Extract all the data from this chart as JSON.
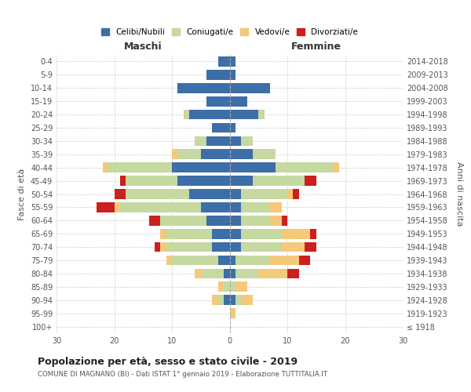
{
  "age_groups": [
    "100+",
    "95-99",
    "90-94",
    "85-89",
    "80-84",
    "75-79",
    "70-74",
    "65-69",
    "60-64",
    "55-59",
    "50-54",
    "45-49",
    "40-44",
    "35-39",
    "30-34",
    "25-29",
    "20-24",
    "15-19",
    "10-14",
    "5-9",
    "0-4"
  ],
  "birth_years": [
    "≤ 1918",
    "1919-1923",
    "1924-1928",
    "1929-1933",
    "1934-1938",
    "1939-1943",
    "1944-1948",
    "1949-1953",
    "1954-1958",
    "1959-1963",
    "1964-1968",
    "1969-1973",
    "1974-1978",
    "1979-1983",
    "1984-1988",
    "1989-1993",
    "1994-1998",
    "1999-2003",
    "2004-2008",
    "2009-2013",
    "2014-2018"
  ],
  "male": {
    "celibi": [
      0,
      0,
      1,
      0,
      1,
      2,
      3,
      3,
      4,
      5,
      7,
      9,
      10,
      5,
      4,
      3,
      7,
      4,
      9,
      4,
      2
    ],
    "coniugati": [
      0,
      0,
      1,
      1,
      4,
      8,
      8,
      8,
      8,
      14,
      11,
      9,
      11,
      4,
      2,
      0,
      1,
      0,
      0,
      0,
      0
    ],
    "vedovi": [
      0,
      0,
      1,
      1,
      1,
      1,
      1,
      1,
      0,
      1,
      0,
      0,
      1,
      1,
      0,
      0,
      0,
      0,
      0,
      0,
      0
    ],
    "divorziati": [
      0,
      0,
      0,
      0,
      0,
      0,
      1,
      0,
      2,
      3,
      2,
      1,
      0,
      0,
      0,
      0,
      0,
      0,
      0,
      0,
      0
    ]
  },
  "female": {
    "nubili": [
      0,
      0,
      1,
      0,
      1,
      1,
      2,
      2,
      2,
      2,
      2,
      4,
      8,
      4,
      2,
      1,
      5,
      3,
      7,
      1,
      1
    ],
    "coniugate": [
      0,
      0,
      1,
      1,
      4,
      6,
      7,
      7,
      5,
      5,
      8,
      9,
      10,
      4,
      2,
      0,
      1,
      0,
      0,
      0,
      0
    ],
    "vedove": [
      0,
      1,
      2,
      2,
      5,
      5,
      4,
      5,
      2,
      2,
      1,
      0,
      1,
      0,
      0,
      0,
      0,
      0,
      0,
      0,
      0
    ],
    "divorziate": [
      0,
      0,
      0,
      0,
      2,
      2,
      2,
      1,
      1,
      0,
      1,
      2,
      0,
      0,
      0,
      0,
      0,
      0,
      0,
      0,
      0
    ]
  },
  "colors": {
    "celibi": "#3d6ea8",
    "coniugati": "#c5d9a0",
    "vedovi": "#f5c97a",
    "divorziati": "#cc1f1f"
  },
  "xlim": 30,
  "title": "Popolazione per età, sesso e stato civile - 2019",
  "subtitle": "COMUNE DI MAGNANO (BI) - Dati ISTAT 1° gennaio 2019 - Elaborazione TUTTITALIA.IT",
  "ylabel_left": "Fasce di età",
  "ylabel_right": "Anni di nascita",
  "xlabel_male": "Maschi",
  "xlabel_female": "Femmine",
  "legend_labels": [
    "Celibi/Nubili",
    "Coniugati/e",
    "Vedovi/e",
    "Divorziati/e"
  ],
  "bg_color": "#ffffff",
  "grid_color": "#cccccc"
}
